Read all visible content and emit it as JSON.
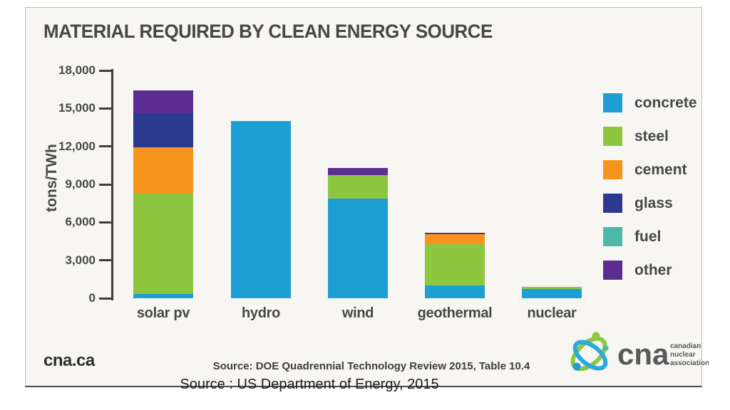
{
  "title": "MATERIAL REQUIRED BY CLEAN ENERGY SOURCE",
  "footer": {
    "site": "cna.ca",
    "source_note": "Source: DOE Quadrennial Technology Review 2015, Table 10.4"
  },
  "caption": "Source : US Department of Energy, 2015",
  "logo": {
    "text": "cna",
    "tagline": [
      "canadian",
      "nuclear",
      "association"
    ]
  },
  "colors": {
    "slide_background": "#f7f6f2",
    "axis": "#3e3e3e",
    "label_text": "#474747"
  },
  "chart_data": {
    "type": "bar",
    "stacked": true,
    "title": "MATERIAL REQUIRED BY CLEAN ENERGY SOURCE",
    "xlabel": "",
    "ylabel": "tons/TWh",
    "ylim": [
      0,
      18000
    ],
    "ytick_interval": 3000,
    "yticks": [
      "18,000",
      "15,000",
      "12,000",
      "9,000",
      "6,000",
      "3,000",
      "0"
    ],
    "grid": false,
    "legend_position": "right",
    "categories": [
      "solar pv",
      "hydro",
      "wind",
      "geothermal",
      "nuclear"
    ],
    "legend": [
      {
        "name": "concrete",
        "color": "#1d9fd4"
      },
      {
        "name": "steel",
        "color": "#8dc63f"
      },
      {
        "name": "cement",
        "color": "#f7941e"
      },
      {
        "name": "glass",
        "color": "#2b3990"
      },
      {
        "name": "fuel",
        "color": "#4db8a8"
      },
      {
        "name": "other",
        "color": "#5b2d90"
      }
    ],
    "series": [
      {
        "name": "concrete",
        "values": [
          350,
          14000,
          7850,
          1000,
          760
        ]
      },
      {
        "name": "steel",
        "values": [
          7900,
          0,
          1900,
          3300,
          160
        ]
      },
      {
        "name": "cement",
        "values": [
          3700,
          0,
          0,
          750,
          0
        ]
      },
      {
        "name": "glass",
        "values": [
          2700,
          0,
          0,
          0,
          0
        ]
      },
      {
        "name": "fuel",
        "values": [
          0,
          0,
          0,
          0,
          0
        ]
      },
      {
        "name": "other",
        "values": [
          1800,
          0,
          520,
          100,
          0
        ]
      }
    ]
  }
}
